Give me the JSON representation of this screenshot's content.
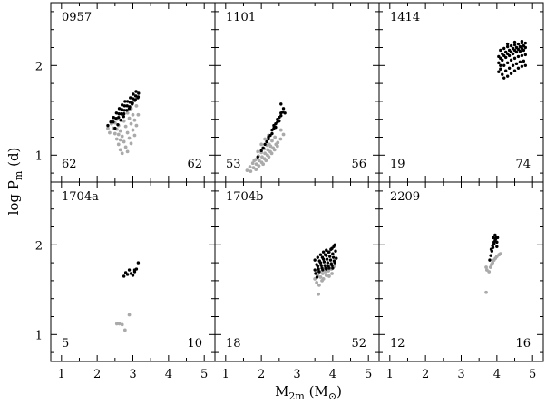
{
  "chart_data": {
    "type": "scatter",
    "xlabel": "M",
    "xlabel_sub": "2m",
    "xlabel_unit": "(M",
    "xlabel_unit_sub": "⊙",
    "xlabel_unit_close": ")",
    "ylabel": "log P",
    "ylabel_sub": "m",
    "ylabel_unit": " (d)",
    "xlim": [
      0.7,
      5.3
    ],
    "ylim": [
      0.7,
      2.7
    ],
    "x_ticks": [
      "1",
      "2",
      "3",
      "4",
      "5"
    ],
    "y_ticks": [
      "1",
      "2"
    ],
    "colors": {
      "black": "#000000",
      "grey": "#aaaaaa"
    },
    "panels": [
      {
        "name": "0957",
        "count_left": "62",
        "count_right": "62",
        "grey_points": [
          [
            2.4,
            1.35
          ],
          [
            2.45,
            1.3
          ],
          [
            2.5,
            1.24
          ],
          [
            2.55,
            1.18
          ],
          [
            2.6,
            1.12
          ],
          [
            2.65,
            1.06
          ],
          [
            2.7,
            1.02
          ],
          [
            2.55,
            1.4
          ],
          [
            2.6,
            1.33
          ],
          [
            2.65,
            1.27
          ],
          [
            2.7,
            1.21
          ],
          [
            2.75,
            1.15
          ],
          [
            2.8,
            1.09
          ],
          [
            2.85,
            1.04
          ],
          [
            2.7,
            1.45
          ],
          [
            2.75,
            1.38
          ],
          [
            2.8,
            1.32
          ],
          [
            2.85,
            1.25
          ],
          [
            2.9,
            1.19
          ],
          [
            2.95,
            1.13
          ],
          [
            2.85,
            1.47
          ],
          [
            2.9,
            1.41
          ],
          [
            2.95,
            1.35
          ],
          [
            3.0,
            1.28
          ],
          [
            3.05,
            1.22
          ],
          [
            2.95,
            1.52
          ],
          [
            3.0,
            1.45
          ],
          [
            3.05,
            1.39
          ],
          [
            3.1,
            1.33
          ],
          [
            3.15,
            1.45
          ],
          [
            3.1,
            1.55
          ],
          [
            2.45,
            1.42
          ],
          [
            2.5,
            1.36
          ],
          [
            2.55,
            1.29
          ],
          [
            2.6,
            1.23
          ],
          [
            2.65,
            1.17
          ],
          [
            2.3,
            1.3
          ],
          [
            2.35,
            1.25
          ]
        ],
        "black_points": [
          [
            2.3,
            1.33
          ],
          [
            2.38,
            1.37
          ],
          [
            2.46,
            1.42
          ],
          [
            2.54,
            1.47
          ],
          [
            2.62,
            1.52
          ],
          [
            2.7,
            1.56
          ],
          [
            2.78,
            1.6
          ],
          [
            2.45,
            1.37
          ],
          [
            2.53,
            1.41
          ],
          [
            2.61,
            1.46
          ],
          [
            2.69,
            1.51
          ],
          [
            2.77,
            1.55
          ],
          [
            2.85,
            1.6
          ],
          [
            2.93,
            1.64
          ],
          [
            3.01,
            1.68
          ],
          [
            3.09,
            1.71
          ],
          [
            2.6,
            1.42
          ],
          [
            2.68,
            1.46
          ],
          [
            2.76,
            1.5
          ],
          [
            2.84,
            1.55
          ],
          [
            2.92,
            1.59
          ],
          [
            3.0,
            1.63
          ],
          [
            3.08,
            1.66
          ],
          [
            3.16,
            1.69
          ],
          [
            2.75,
            1.46
          ],
          [
            2.83,
            1.5
          ],
          [
            2.91,
            1.54
          ],
          [
            2.99,
            1.58
          ],
          [
            3.07,
            1.62
          ],
          [
            3.15,
            1.65
          ],
          [
            2.9,
            1.52
          ],
          [
            2.98,
            1.57
          ],
          [
            3.06,
            1.61
          ],
          [
            3.14,
            1.64
          ],
          [
            2.5,
            1.3
          ],
          [
            2.58,
            1.34
          ],
          [
            2.66,
            1.39
          ],
          [
            2.74,
            1.43
          ]
        ]
      },
      {
        "name": "1101",
        "count_left": "53",
        "count_right": "56",
        "grey_points": [
          [
            1.6,
            0.83
          ],
          [
            1.68,
            0.87
          ],
          [
            1.76,
            0.91
          ],
          [
            1.84,
            0.95
          ],
          [
            1.92,
            0.99
          ],
          [
            2.0,
            1.03
          ],
          [
            2.08,
            1.07
          ],
          [
            2.16,
            1.11
          ],
          [
            1.7,
            0.82
          ],
          [
            1.78,
            0.86
          ],
          [
            1.86,
            0.9
          ],
          [
            1.94,
            0.94
          ],
          [
            2.02,
            0.98
          ],
          [
            2.1,
            1.02
          ],
          [
            2.18,
            1.06
          ],
          [
            2.26,
            1.1
          ],
          [
            1.85,
            0.84
          ],
          [
            1.93,
            0.88
          ],
          [
            2.01,
            0.92
          ],
          [
            2.09,
            0.96
          ],
          [
            2.17,
            1.0
          ],
          [
            2.25,
            1.04
          ],
          [
            2.33,
            1.08
          ],
          [
            2.41,
            1.12
          ],
          [
            2.05,
            0.9
          ],
          [
            2.13,
            0.94
          ],
          [
            2.21,
            0.98
          ],
          [
            2.29,
            1.02
          ],
          [
            2.37,
            1.06
          ],
          [
            2.45,
            1.1
          ],
          [
            2.22,
            1.12
          ],
          [
            2.3,
            1.16
          ],
          [
            2.38,
            1.2
          ],
          [
            2.46,
            1.14
          ],
          [
            2.54,
            1.18
          ],
          [
            2.55,
            1.28
          ],
          [
            2.62,
            1.23
          ],
          [
            1.8,
            0.94
          ],
          [
            1.9,
            1.04
          ],
          [
            2.0,
            1.12
          ],
          [
            2.1,
            1.18
          ],
          [
            2.2,
            1.22
          ]
        ],
        "black_points": [
          [
            1.9,
            0.98
          ],
          [
            2.0,
            1.05
          ],
          [
            2.1,
            1.12
          ],
          [
            2.2,
            1.18
          ],
          [
            2.3,
            1.24
          ],
          [
            2.4,
            1.31
          ],
          [
            2.5,
            1.38
          ],
          [
            2.05,
            1.08
          ],
          [
            2.15,
            1.15
          ],
          [
            2.25,
            1.22
          ],
          [
            2.35,
            1.3
          ],
          [
            2.45,
            1.37
          ],
          [
            2.55,
            1.44
          ],
          [
            2.2,
            1.2
          ],
          [
            2.3,
            1.28
          ],
          [
            2.4,
            1.35
          ],
          [
            2.5,
            1.42
          ],
          [
            2.6,
            1.48
          ],
          [
            2.35,
            1.33
          ],
          [
            2.45,
            1.4
          ],
          [
            2.55,
            1.47
          ],
          [
            2.62,
            1.52
          ],
          [
            2.55,
            1.57
          ],
          [
            2.66,
            1.47
          ]
        ]
      },
      {
        "name": "1414",
        "count_left": "19",
        "count_right": "74",
        "grey_points": [],
        "black_points": [
          [
            4.1,
            2.17
          ],
          [
            4.2,
            2.19
          ],
          [
            4.3,
            2.21
          ],
          [
            4.4,
            2.22
          ],
          [
            4.5,
            2.23
          ],
          [
            4.6,
            2.24
          ],
          [
            4.7,
            2.25
          ],
          [
            4.8,
            2.25
          ],
          [
            4.05,
            2.1
          ],
          [
            4.15,
            2.13
          ],
          [
            4.25,
            2.15
          ],
          [
            4.35,
            2.17
          ],
          [
            4.45,
            2.19
          ],
          [
            4.55,
            2.2
          ],
          [
            4.65,
            2.21
          ],
          [
            4.75,
            2.22
          ],
          [
            4.05,
            2.03
          ],
          [
            4.15,
            2.06
          ],
          [
            4.25,
            2.09
          ],
          [
            4.35,
            2.11
          ],
          [
            4.45,
            2.13
          ],
          [
            4.55,
            2.15
          ],
          [
            4.65,
            2.16
          ],
          [
            4.75,
            2.17
          ],
          [
            4.1,
            1.96
          ],
          [
            4.2,
            2.0
          ],
          [
            4.3,
            2.03
          ],
          [
            4.4,
            2.06
          ],
          [
            4.5,
            2.08
          ],
          [
            4.6,
            2.1
          ],
          [
            4.7,
            2.11
          ],
          [
            4.8,
            2.12
          ],
          [
            4.15,
            1.9
          ],
          [
            4.25,
            1.94
          ],
          [
            4.35,
            1.97
          ],
          [
            4.45,
            2.0
          ],
          [
            4.55,
            2.02
          ],
          [
            4.65,
            2.04
          ],
          [
            4.75,
            2.05
          ],
          [
            4.05,
            1.93
          ],
          [
            4.2,
            1.86
          ],
          [
            4.3,
            1.88
          ],
          [
            4.4,
            1.91
          ],
          [
            4.5,
            1.94
          ],
          [
            4.6,
            1.97
          ],
          [
            4.7,
            1.99
          ],
          [
            4.8,
            2.0
          ],
          [
            4.1,
            2.08
          ],
          [
            4.2,
            2.11
          ],
          [
            4.3,
            2.13
          ],
          [
            4.4,
            2.15
          ],
          [
            4.5,
            2.17
          ],
          [
            4.6,
            2.18
          ],
          [
            4.7,
            2.19
          ],
          [
            4.8,
            2.2
          ],
          [
            4.1,
            2.0
          ],
          [
            4.3,
            2.24
          ],
          [
            4.5,
            2.26
          ],
          [
            4.7,
            2.27
          ]
        ]
      },
      {
        "name": "1704a",
        "count_left": "5",
        "count_right": "10",
        "grey_points": [
          [
            2.55,
            1.12
          ],
          [
            2.62,
            1.12
          ],
          [
            2.7,
            1.11
          ],
          [
            2.78,
            1.05
          ],
          [
            2.9,
            1.22
          ]
        ],
        "black_points": [
          [
            2.75,
            1.65
          ],
          [
            2.85,
            1.67
          ],
          [
            2.95,
            1.68
          ],
          [
            3.05,
            1.7
          ],
          [
            2.8,
            1.69
          ],
          [
            2.9,
            1.72
          ],
          [
            3.0,
            1.66
          ],
          [
            3.1,
            1.73
          ],
          [
            3.15,
            1.8
          ],
          [
            3.05,
            1.72
          ]
        ]
      },
      {
        "name": "1704b",
        "count_left": "18",
        "count_right": "52",
        "grey_points": [
          [
            3.6,
            1.45
          ],
          [
            3.5,
            1.62
          ],
          [
            3.55,
            1.58
          ],
          [
            3.62,
            1.55
          ],
          [
            3.7,
            1.6
          ],
          [
            3.58,
            1.66
          ],
          [
            3.66,
            1.64
          ],
          [
            3.74,
            1.62
          ],
          [
            3.82,
            1.66
          ],
          [
            3.9,
            1.65
          ],
          [
            3.98,
            1.68
          ],
          [
            3.64,
            1.7
          ],
          [
            3.72,
            1.68
          ],
          [
            3.8,
            1.7
          ],
          [
            3.88,
            1.71
          ],
          [
            3.96,
            1.73
          ],
          [
            4.04,
            1.76
          ],
          [
            3.55,
            1.7
          ]
        ],
        "black_points": [
          [
            3.5,
            1.72
          ],
          [
            3.58,
            1.76
          ],
          [
            3.66,
            1.8
          ],
          [
            3.74,
            1.84
          ],
          [
            3.82,
            1.88
          ],
          [
            3.9,
            1.92
          ],
          [
            3.98,
            1.96
          ],
          [
            4.06,
            2.0
          ],
          [
            3.55,
            1.78
          ],
          [
            3.63,
            1.82
          ],
          [
            3.71,
            1.86
          ],
          [
            3.79,
            1.89
          ],
          [
            3.87,
            1.92
          ],
          [
            3.95,
            1.95
          ],
          [
            4.03,
            1.98
          ],
          [
            3.5,
            1.83
          ],
          [
            3.58,
            1.86
          ],
          [
            3.66,
            1.89
          ],
          [
            3.74,
            1.92
          ],
          [
            3.82,
            1.94
          ],
          [
            3.6,
            1.73
          ],
          [
            3.68,
            1.77
          ],
          [
            3.76,
            1.81
          ],
          [
            3.84,
            1.84
          ],
          [
            3.92,
            1.87
          ],
          [
            4.0,
            1.9
          ],
          [
            4.08,
            1.93
          ],
          [
            3.7,
            1.74
          ],
          [
            3.78,
            1.77
          ],
          [
            3.86,
            1.8
          ],
          [
            3.94,
            1.83
          ],
          [
            4.02,
            1.86
          ],
          [
            3.8,
            1.74
          ],
          [
            3.88,
            1.76
          ],
          [
            3.96,
            1.79
          ],
          [
            4.04,
            1.82
          ],
          [
            3.9,
            1.74
          ],
          [
            3.98,
            1.77
          ],
          [
            4.06,
            1.8
          ],
          [
            3.52,
            1.68
          ],
          [
            3.62,
            1.7
          ],
          [
            3.72,
            1.72
          ],
          [
            3.82,
            1.73
          ],
          [
            4.0,
            1.74
          ],
          [
            4.1,
            1.85
          ],
          [
            3.56,
            1.64
          ]
        ]
      },
      {
        "name": "2209",
        "count_left": "12",
        "count_right": "16",
        "grey_points": [
          [
            3.7,
            1.47
          ],
          [
            3.72,
            1.72
          ],
          [
            3.78,
            1.7
          ],
          [
            3.82,
            1.75
          ],
          [
            3.85,
            1.78
          ],
          [
            3.88,
            1.8
          ],
          [
            3.92,
            1.83
          ],
          [
            3.96,
            1.85
          ],
          [
            4.0,
            1.87
          ],
          [
            4.06,
            1.89
          ],
          [
            4.1,
            1.9
          ],
          [
            3.7,
            1.75
          ]
        ],
        "black_points": [
          [
            3.8,
            1.83
          ],
          [
            3.83,
            1.88
          ],
          [
            3.86,
            1.93
          ],
          [
            3.89,
            1.97
          ],
          [
            3.92,
            2.01
          ],
          [
            3.95,
            2.05
          ],
          [
            3.98,
            2.08
          ],
          [
            3.84,
            1.95
          ],
          [
            3.88,
            1.99
          ],
          [
            3.92,
            2.03
          ],
          [
            3.96,
            2.06
          ],
          [
            4.0,
            2.03
          ],
          [
            3.9,
            2.08
          ],
          [
            3.95,
            2.11
          ],
          [
            4.0,
            1.98
          ],
          [
            4.02,
            2.08
          ]
        ]
      }
    ]
  }
}
